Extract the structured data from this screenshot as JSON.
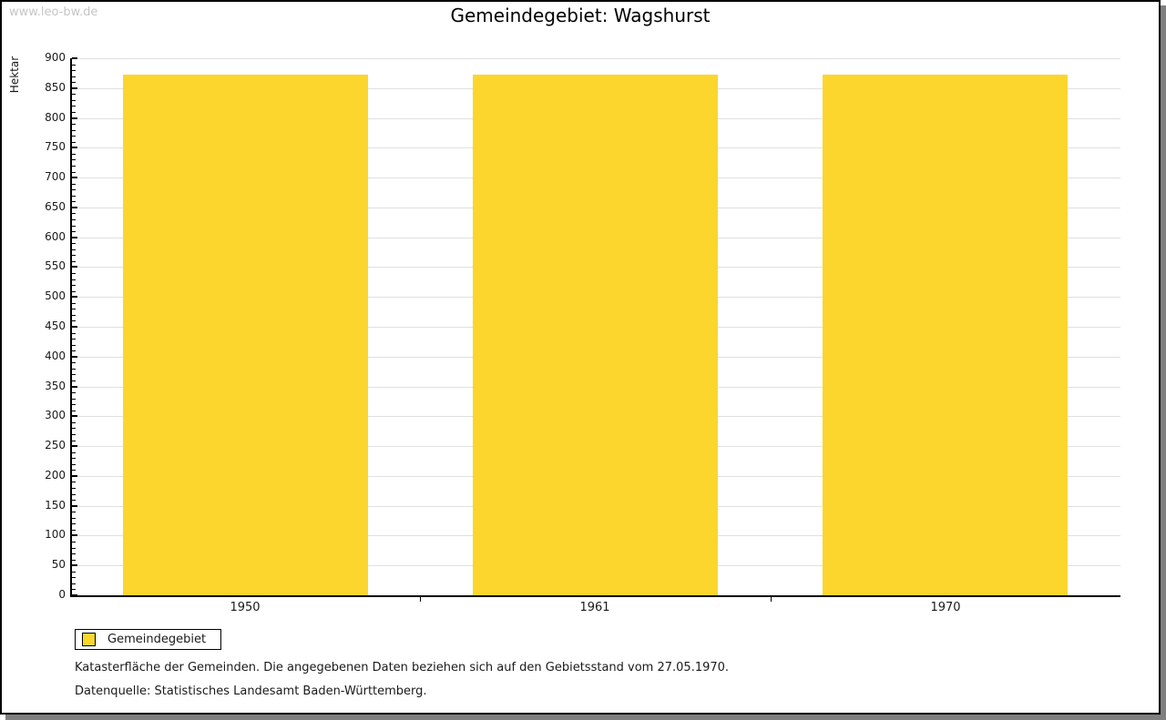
{
  "watermark": "www.leo-bw.de",
  "title": "Gemeindegebiet: Wagshurst",
  "chart_data": {
    "type": "bar",
    "title": "Gemeindegebiet: Wagshurst",
    "categories": [
      "1950",
      "1961",
      "1970"
    ],
    "series": [
      {
        "name": "Gemeindegebiet",
        "values": [
          873,
          873,
          873
        ]
      }
    ],
    "xlabel": "",
    "ylabel": "Hektar",
    "ylim": [
      0,
      900
    ],
    "y_major_step": 50,
    "y_minor_step": 10,
    "grid": true,
    "legend_position": "bottom-left",
    "bar_color": "#fcd62d"
  },
  "legend": {
    "label": "Gemeindegebiet",
    "swatch_color": "#fcd62d"
  },
  "footnotes": [
    "Katasterfläche der Gemeinden. Die angegebenen Daten beziehen sich auf den Gebietsstand vom 27.05.1970.",
    "Datenquelle: Statistisches Landesamt Baden-Württemberg."
  ],
  "colors": {
    "bar": "#fcd62d",
    "grid": "#e0e0e0",
    "axis": "#000000",
    "watermark": "#c6c6c6",
    "shadow": "#7f7f7f",
    "panel_border": "#000000",
    "text": "#1a1a1a"
  }
}
